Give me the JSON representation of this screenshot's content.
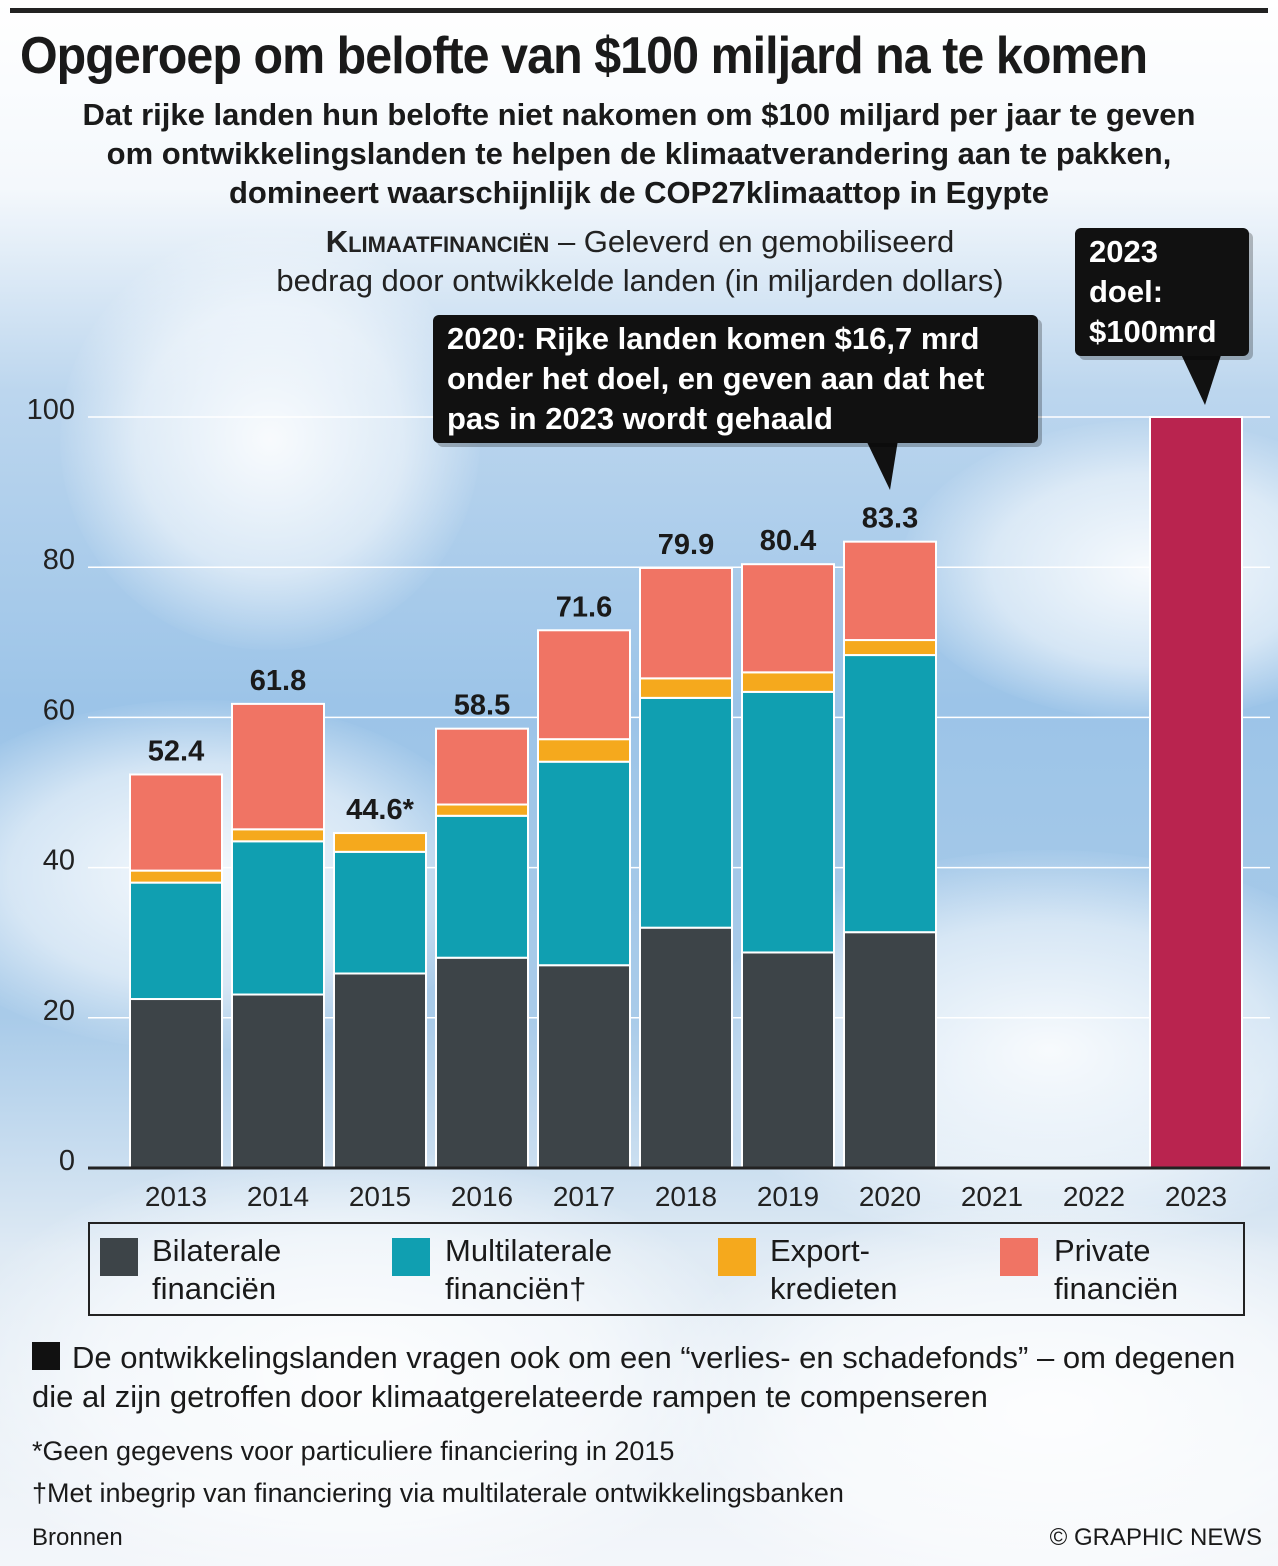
{
  "title": "Opgeroep om belofte van $100 miljard na te komen",
  "subtitle": [
    "Dat rijke landen hun belofte  niet nakomen om $100 miljard per jaar te geven",
    "om  ontwikkelingslanden te helpen de klimaatverandering aan te pakken,",
    "domineert waarschijnlijk de COP27klimaattop in Egypte"
  ],
  "chart_head": {
    "bold": "Klimaatfinanciën",
    "rest": " – Geleverd en gemobiliseerd",
    "line2": "bedrag door ontwikkelde landen (in miljarden dollars)"
  },
  "callouts": {
    "c2020": [
      "2020: Rijke landen komen $16,7 mrd",
      "onder het doel, en geven aan dat het",
      "pas in 2023 wordt gehaald"
    ],
    "c2023": [
      "2023",
      "doel:",
      "$100mrd"
    ]
  },
  "chart_data": {
    "type": "bar",
    "stacked": true,
    "categories": [
      "2013",
      "2014",
      "2015",
      "2016",
      "2017",
      "2018",
      "2019",
      "2020",
      "2021",
      "2022",
      "2023"
    ],
    "ylim": [
      0,
      100
    ],
    "yticks": [
      "0",
      "20",
      "40",
      "60",
      "80",
      "100"
    ],
    "grid": true,
    "series": [
      {
        "name": "Bilaterale financiën",
        "color": "#3d4448",
        "values": [
          22.5,
          23.1,
          25.9,
          28.0,
          27.0,
          32.0,
          28.7,
          31.4,
          null,
          null,
          null
        ]
      },
      {
        "name": "Multilaterale financiën†",
        "color": "#109fb1",
        "values": [
          15.5,
          20.4,
          16.2,
          18.9,
          27.1,
          30.6,
          34.7,
          36.9,
          null,
          null,
          null
        ]
      },
      {
        "name": "Export-kredieten",
        "color": "#f5a91d",
        "values": [
          1.6,
          1.6,
          2.5,
          1.5,
          3.0,
          2.6,
          2.6,
          2.0,
          null,
          null,
          null
        ]
      },
      {
        "name": "Private financiën",
        "color": "#f07464",
        "values": [
          12.8,
          16.7,
          null,
          10.1,
          14.5,
          14.7,
          14.4,
          13.1,
          null,
          null,
          null
        ]
      }
    ],
    "goal": {
      "category": "2023",
      "value": 100,
      "color": "#b9244f"
    },
    "data_labels": [
      "52.4",
      "61.8",
      "44.6*",
      "58.5",
      "71.6",
      "79.9",
      "80.4",
      "83.3",
      "",
      "",
      ""
    ]
  },
  "legend": [
    {
      "l1": "Bilaterale",
      "l2": "financiën",
      "color": "#3d4448"
    },
    {
      "l1": "Multilaterale",
      "l2": "financiën†",
      "color": "#109fb1"
    },
    {
      "l1": "Export-",
      "l2": "kredieten",
      "color": "#f5a91d"
    },
    {
      "l1": "Private",
      "l2": "financiën",
      "color": "#f07464"
    }
  ],
  "note": "De ontwikkelingslanden vragen ook om een “verlies- en schadefonds” – om degenen die al zijn getroffen door klimaatgerelateerde rampen te compenseren",
  "footnotes": [
    "*Geen gegevens voor particuliere financiering in 2015",
    "†Met inbegrip van financiering via multilaterale ontwikkelingsbanken"
  ],
  "source": "Bronnen",
  "credit": "© GRAPHIC NEWS"
}
